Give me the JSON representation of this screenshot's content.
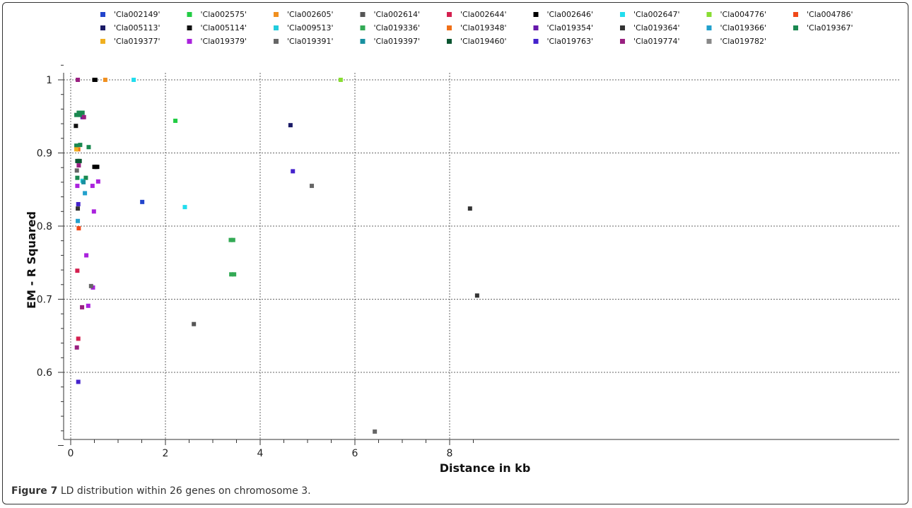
{
  "caption": {
    "label": "Figure 7",
    "text": "LD distribution within 26 genes on chromosome 3."
  },
  "chart_data": {
    "type": "scatter",
    "title": "",
    "xlabel": "Distance in kb",
    "ylabel": "EM - R Squared",
    "xlim": [
      -0.05,
      8.75
    ],
    "ylim": [
      0.5,
      1.04
    ],
    "x_ticks": [
      0,
      2,
      4,
      6,
      8
    ],
    "y_ticks": [
      0.6,
      0.7,
      0.8,
      0.9,
      1
    ],
    "y_tick_labels": [
      "0.6",
      "0.7",
      "0.8",
      "0.9",
      "1"
    ],
    "grid": true,
    "legend_position": "top",
    "series": [
      {
        "name": "'Cla002149'",
        "color": "#2244cc",
        "points": [
          [
            1.51,
            0.833
          ]
        ]
      },
      {
        "name": "'Cla002575'",
        "color": "#22cc44",
        "points": [
          [
            2.21,
            0.944
          ]
        ]
      },
      {
        "name": "'Cla002605'",
        "color": "#f09020",
        "points": [
          [
            0.73,
            1.0
          ]
        ]
      },
      {
        "name": "'Cla002614'",
        "color": "#555555",
        "points": [
          [
            2.6,
            0.666
          ]
        ]
      },
      {
        "name": "'Cla002644'",
        "color": "#d42050",
        "points": [
          [
            0.14,
            0.739
          ],
          [
            0.16,
            0.646
          ]
        ]
      },
      {
        "name": "'Cla002646'",
        "color": "#000000",
        "points": [
          [
            0.5,
            1.0
          ],
          [
            0.52,
            1.0
          ],
          [
            0.5,
            0.881
          ],
          [
            0.53,
            0.881
          ],
          [
            0.56,
            0.881
          ]
        ]
      },
      {
        "name": "'Cla002647'",
        "color": "#22ddee",
        "points": [
          [
            1.33,
            1.0
          ],
          [
            2.41,
            0.826
          ]
        ]
      },
      {
        "name": "'Cla004776'",
        "color": "#88dd33",
        "points": [
          [
            5.7,
            1.0
          ]
        ]
      },
      {
        "name": "'Cla004786'",
        "color": "#f04818",
        "points": [
          [
            0.17,
            0.797
          ]
        ]
      },
      {
        "name": "'Cla005113'",
        "color": "#1a1a66",
        "points": [
          [
            4.64,
            0.938
          ]
        ]
      },
      {
        "name": "'Cla005114'",
        "color": "#111111",
        "points": [
          [
            0.11,
            0.937
          ]
        ]
      },
      {
        "name": "'Cla009513'",
        "color": "#22ccdd",
        "points": [
          [
            0.25,
            0.862
          ]
        ]
      },
      {
        "name": "'Cla019336'",
        "color": "#33aa55",
        "points": [
          [
            3.38,
            0.781
          ],
          [
            3.43,
            0.781
          ],
          [
            3.39,
            0.734
          ],
          [
            3.45,
            0.734
          ]
        ]
      },
      {
        "name": "'Cla019348'",
        "color": "#f07018",
        "points": [
          [
            0.16,
            0.905
          ]
        ]
      },
      {
        "name": "'Cla019354'",
        "color": "#6618aa",
        "points": [
          [
            0.25,
            0.949
          ]
        ]
      },
      {
        "name": "'Cla019364'",
        "color": "#333333",
        "points": [
          [
            8.43,
            0.824
          ],
          [
            8.58,
            0.705
          ],
          [
            0.15,
            0.824
          ]
        ]
      },
      {
        "name": "'Cla019366'",
        "color": "#22a0cc",
        "points": [
          [
            0.15,
            0.807
          ],
          [
            0.3,
            0.845
          ]
        ]
      },
      {
        "name": "'Cla019367'",
        "color": "#1a8850",
        "points": [
          [
            0.12,
            0.952
          ],
          [
            0.17,
            0.955
          ],
          [
            0.2,
            0.952
          ],
          [
            0.25,
            0.955
          ],
          [
            0.12,
            0.91
          ],
          [
            0.2,
            0.911
          ],
          [
            0.38,
            0.908
          ],
          [
            0.14,
            0.866
          ],
          [
            0.32,
            0.866
          ]
        ]
      },
      {
        "name": "'Cla019377'",
        "color": "#f0b020",
        "points": [
          [
            0.12,
            0.905
          ]
        ]
      },
      {
        "name": "'Cla019379'",
        "color": "#aa22dd",
        "points": [
          [
            0.14,
            0.855
          ],
          [
            0.46,
            0.855
          ],
          [
            0.58,
            0.861
          ],
          [
            0.49,
            0.82
          ],
          [
            0.33,
            0.76
          ],
          [
            0.47,
            0.716
          ],
          [
            0.37,
            0.691
          ]
        ]
      },
      {
        "name": "'Cla019391'",
        "color": "#666666",
        "points": [
          [
            0.13,
            0.876
          ],
          [
            0.43,
            0.718
          ],
          [
            5.09,
            0.855
          ],
          [
            6.42,
            0.519
          ]
        ]
      },
      {
        "name": "'Cla019397'",
        "color": "#1890a0",
        "points": [
          [
            0.27,
            0.86
          ]
        ]
      },
      {
        "name": "'Cla019460'",
        "color": "#0a5530",
        "points": [
          [
            0.14,
            0.889
          ],
          [
            0.17,
            0.889
          ],
          [
            0.19,
            0.889
          ]
        ]
      },
      {
        "name": "'Cla019763'",
        "color": "#4422cc",
        "points": [
          [
            4.69,
            0.875
          ],
          [
            0.16,
            0.83
          ],
          [
            0.16,
            0.587
          ]
        ]
      },
      {
        "name": "'Cla019774'",
        "color": "#991f80",
        "points": [
          [
            0.15,
            1.0
          ],
          [
            0.13,
            0.634
          ],
          [
            0.24,
            0.689
          ],
          [
            0.28,
            0.949
          ],
          [
            0.17,
            0.883
          ]
        ]
      },
      {
        "name": "'Cla019782'",
        "color": "#888888",
        "points": []
      }
    ]
  }
}
